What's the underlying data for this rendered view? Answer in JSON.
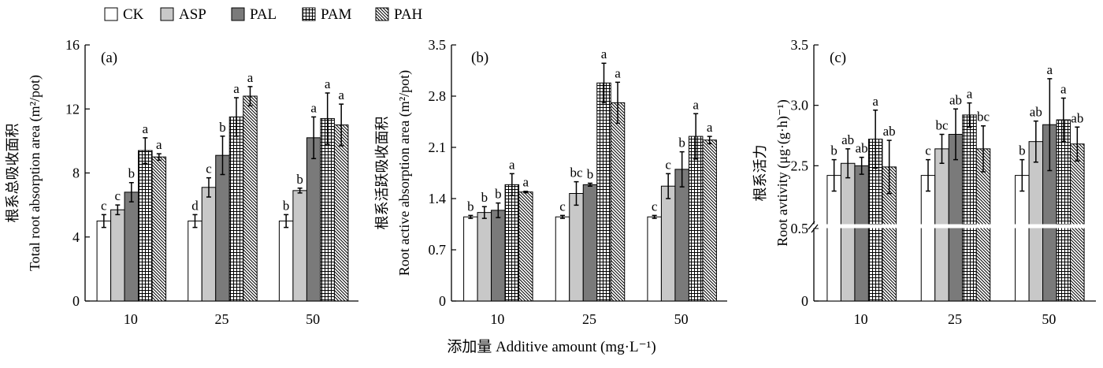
{
  "colors": {
    "CK": "#ffffff",
    "ASP": "#c8c8c8",
    "PAL": "#7a7a7a",
    "PAM": "crosshatch",
    "PAH": "diagonal"
  },
  "legend": [
    "CK",
    "ASP",
    "PAL",
    "PAM",
    "PAH"
  ],
  "x_axis_title": "添加量 Additive amount (mg·L⁻¹)",
  "chart_data": [
    {
      "type": "bar",
      "panel_label": "(a)",
      "ylabel_cn": "根系总吸收面积",
      "ylabel_en": "Total root absorption area (m²/pot)",
      "categories": [
        "10",
        "25",
        "50"
      ],
      "ylim": [
        0,
        16
      ],
      "yticks": [
        "0",
        "4",
        "8",
        "12",
        "16"
      ],
      "broken_axis": false,
      "series": [
        {
          "name": "CK",
          "values": [
            5.0,
            5.0,
            5.0
          ],
          "errors": [
            0.4,
            0.4,
            0.4
          ],
          "labels": [
            "c",
            "d",
            "b"
          ]
        },
        {
          "name": "ASP",
          "values": [
            5.7,
            7.1,
            6.9
          ],
          "errors": [
            0.3,
            0.6,
            0.15
          ],
          "labels": [
            "c",
            "c",
            "b"
          ]
        },
        {
          "name": "PAL",
          "values": [
            6.8,
            9.1,
            10.2
          ],
          "errors": [
            0.6,
            1.2,
            1.3
          ],
          "labels": [
            "b",
            "b",
            "a"
          ]
        },
        {
          "name": "PAM",
          "values": [
            9.4,
            11.5,
            11.4
          ],
          "errors": [
            0.8,
            1.2,
            1.6
          ],
          "labels": [
            "a",
            "a",
            "a"
          ]
        },
        {
          "name": "PAH",
          "values": [
            9.0,
            12.8,
            11.0
          ],
          "errors": [
            0.2,
            0.6,
            1.3
          ],
          "labels": [
            "a",
            "a",
            "a"
          ]
        }
      ]
    },
    {
      "type": "bar",
      "panel_label": "(b)",
      "ylabel_cn": "根系活跃吸收面积",
      "ylabel_en": "Root active absorption area (m²/pot)",
      "categories": [
        "10",
        "25",
        "50"
      ],
      "ylim": [
        0,
        3.5
      ],
      "yticks": [
        "0",
        "0.7",
        "1.4",
        "2.1",
        "2.8",
        "3.5"
      ],
      "broken_axis": false,
      "series": [
        {
          "name": "CK",
          "values": [
            1.15,
            1.15,
            1.15
          ],
          "errors": [
            0.02,
            0.02,
            0.02
          ],
          "labels": [
            "b",
            "c",
            "c"
          ]
        },
        {
          "name": "ASP",
          "values": [
            1.21,
            1.47,
            1.57
          ],
          "errors": [
            0.08,
            0.16,
            0.17
          ],
          "labels": [
            "b",
            "bc",
            "c"
          ]
        },
        {
          "name": "PAL",
          "values": [
            1.24,
            1.59,
            1.8
          ],
          "errors": [
            0.1,
            0.02,
            0.24
          ],
          "labels": [
            "b",
            "b",
            "b"
          ]
        },
        {
          "name": "PAM",
          "values": [
            1.59,
            2.98,
            2.25
          ],
          "errors": [
            0.15,
            0.27,
            0.31
          ],
          "labels": [
            "a",
            "a",
            "a"
          ]
        },
        {
          "name": "PAH",
          "values": [
            1.49,
            2.71,
            2.2
          ],
          "errors": [
            0.01,
            0.28,
            0.05
          ],
          "labels": [
            "a",
            "a",
            "a"
          ]
        }
      ]
    },
    {
      "type": "bar",
      "panel_label": "(c)",
      "ylabel_cn": "根系活力",
      "ylabel_en": "Root avtivity (μg·(g·h)⁻¹)",
      "categories": [
        "10",
        "25",
        "50"
      ],
      "ylim": [
        0,
        3.5
      ],
      "yticks": [
        "0",
        "0.5",
        "2.5",
        "3.0",
        "3.5"
      ],
      "broken_axis": true,
      "axis_break": [
        0.5,
        2.0
      ],
      "series": [
        {
          "name": "CK",
          "values": [
            2.42,
            2.42,
            2.42
          ],
          "errors": [
            0.13,
            0.13,
            0.13
          ],
          "labels": [
            "b",
            "c",
            "b"
          ]
        },
        {
          "name": "ASP",
          "values": [
            2.52,
            2.64,
            2.7
          ],
          "errors": [
            0.12,
            0.12,
            0.17
          ],
          "labels": [
            "ab",
            "bc",
            "ab"
          ]
        },
        {
          "name": "PAL",
          "values": [
            2.5,
            2.76,
            2.84
          ],
          "errors": [
            0.07,
            0.21,
            0.38
          ],
          "labels": [
            "ab",
            "ab",
            "a"
          ]
        },
        {
          "name": "PAM",
          "values": [
            2.72,
            2.92,
            2.88
          ],
          "errors": [
            0.24,
            0.1,
            0.18
          ],
          "labels": [
            "a",
            "a",
            "a"
          ]
        },
        {
          "name": "PAH",
          "values": [
            2.49,
            2.64,
            2.68
          ],
          "errors": [
            0.22,
            0.19,
            0.14
          ],
          "labels": [
            "ab",
            "bc",
            "ab"
          ]
        }
      ]
    }
  ]
}
